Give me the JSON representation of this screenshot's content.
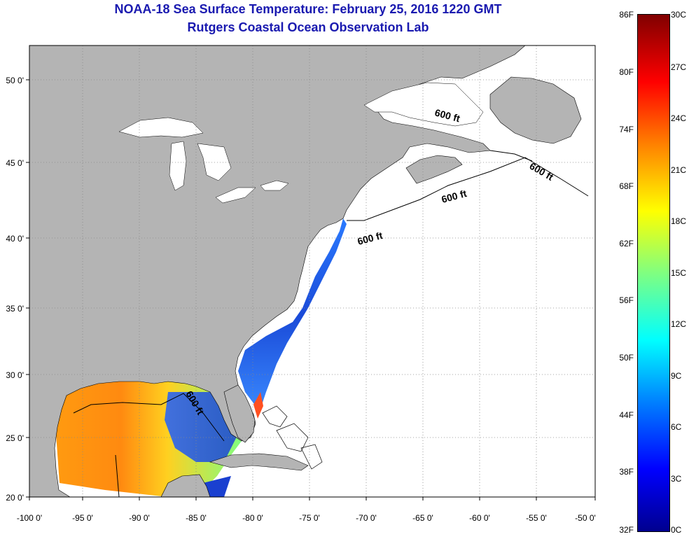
{
  "title": {
    "line1": "NOAA-18 Sea Surface Temperature:  February 25, 2016 1220 GMT",
    "line2": "Rutgers Coastal Ocean Observation Lab"
  },
  "map": {
    "lon_range": [
      -100,
      -50
    ],
    "lat_range": [
      20,
      52.5
    ],
    "lon_ticks": [
      "-100 0'",
      "-95 0'",
      "-90 0'",
      "-85 0'",
      "-80 0'",
      "-75 0'",
      "-70 0'",
      "-65 0'",
      "-60 0'",
      "-55 0'",
      "-50 0'"
    ],
    "lat_ticks": [
      "50 0'",
      "45 0'",
      "40 0'",
      "35 0'",
      "30 0'",
      "25 0'",
      "20 0'"
    ],
    "contour_label": "600 ft",
    "land_color": "#b4b4b4",
    "grid": "dotted"
  },
  "colorbar": {
    "fahrenheit_labels": [
      "86F",
      "80F",
      "74F",
      "68F",
      "62F",
      "56F",
      "50F",
      "44F",
      "38F",
      "32F"
    ],
    "celsius_labels": [
      "30C",
      "27C",
      "24C",
      "21C",
      "18C",
      "15C",
      "12C",
      "9C",
      "6C",
      "3C",
      "0C"
    ],
    "colors": [
      "#00008f",
      "#0000ff",
      "#0080ff",
      "#00ffff",
      "#80ff80",
      "#ffff00",
      "#ff8000",
      "#ff0000",
      "#800000"
    ]
  }
}
